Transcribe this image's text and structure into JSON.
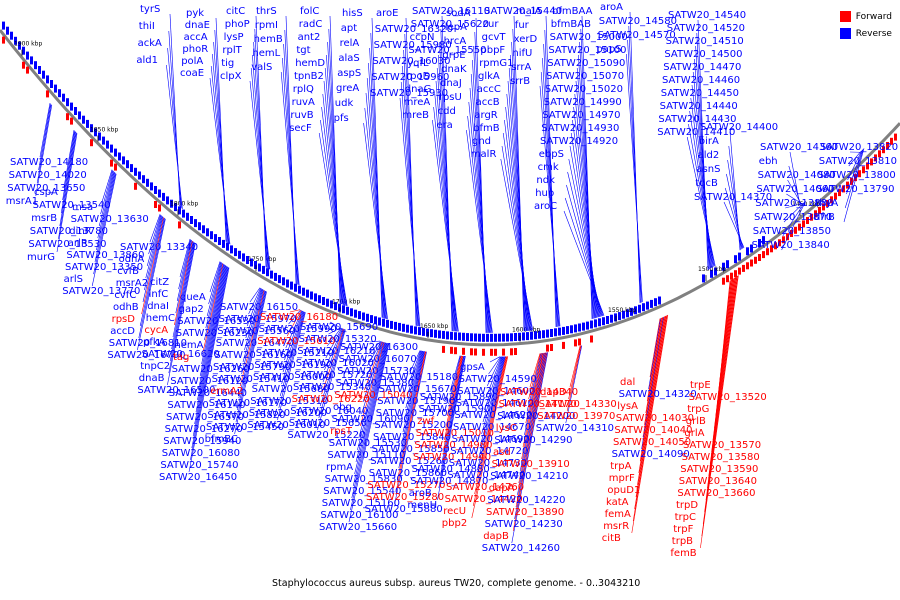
{
  "title": "Staphylococcus aureus subsp. aureus TW20, complete genome. - 0..3043210",
  "legend": [
    {
      "label": "Forward",
      "color": "#ff0000"
    },
    {
      "label": "Reverse",
      "color": "#0000ff"
    }
  ],
  "colors": {
    "forward": "#ff0000",
    "reverse": "#0000ff",
    "backbone": "#808080"
  },
  "ticks": [
    "1900 kbp",
    "1850 kbp",
    "1800 kbp",
    "1750 kbp",
    "1700 kbp",
    "1650 kbp",
    "1600 kbp",
    "1550 kbp",
    "1500 kbp",
    "1450 kbp"
  ],
  "labels": [
    {
      "text": "tyrS",
      "s": "r"
    },
    {
      "text": "thiI",
      "s": "r"
    },
    {
      "text": "ackA",
      "s": "r"
    },
    {
      "text": "ald1",
      "s": "r"
    },
    {
      "text": "pyk",
      "s": "r"
    },
    {
      "text": "dnaE",
      "s": "r"
    },
    {
      "text": "accA",
      "s": "r"
    },
    {
      "text": "phoR",
      "s": "r"
    },
    {
      "text": "polA",
      "s": "r"
    },
    {
      "text": "coaE",
      "s": "r"
    },
    {
      "text": "citC",
      "s": "r"
    },
    {
      "text": "phoP",
      "s": "r"
    },
    {
      "text": "lysP",
      "s": "r"
    },
    {
      "text": "rplT",
      "s": "r"
    },
    {
      "text": "tig",
      "s": "r"
    },
    {
      "text": "clpX",
      "s": "r"
    },
    {
      "text": "thrS",
      "s": "r"
    },
    {
      "text": "rpmI",
      "s": "r"
    },
    {
      "text": "hemB",
      "s": "r"
    },
    {
      "text": "hemL",
      "s": "r"
    },
    {
      "text": "valS",
      "s": "r"
    },
    {
      "text": "folC",
      "s": "r"
    },
    {
      "text": "radC",
      "s": "r"
    },
    {
      "text": "ant2",
      "s": "r"
    },
    {
      "text": "tgt",
      "s": "r"
    },
    {
      "text": "hemD",
      "s": "r"
    },
    {
      "text": "tpnB2",
      "s": "r"
    },
    {
      "text": "rplQ",
      "s": "r"
    },
    {
      "text": "ruvA",
      "s": "r"
    },
    {
      "text": "ruvB",
      "s": "r"
    },
    {
      "text": "secF",
      "s": "r"
    },
    {
      "text": "hisS",
      "s": "r"
    },
    {
      "text": "apt",
      "s": "r"
    },
    {
      "text": "relA",
      "s": "r"
    },
    {
      "text": "alaS",
      "s": "r"
    },
    {
      "text": "aspS",
      "s": "r"
    },
    {
      "text": "greA",
      "s": "r"
    },
    {
      "text": "udk",
      "s": "r"
    },
    {
      "text": "pfs",
      "s": "r"
    },
    {
      "text": "aroE",
      "s": "r"
    },
    {
      "text": "SATW20_16320",
      "s": "r"
    },
    {
      "text": "SATW20_15980",
      "s": "r"
    },
    {
      "text": "SATW20_16030",
      "s": "r"
    },
    {
      "text": "SATW20_15960",
      "s": "r"
    },
    {
      "text": "SATW20_15930",
      "s": "r"
    },
    {
      "text": "SATW20_16110",
      "s": "r"
    },
    {
      "text": "SATW20_15620",
      "s": "r"
    },
    {
      "text": "ccpN",
      "s": "r"
    },
    {
      "text": "SATW20_15550",
      "s": "r"
    },
    {
      "text": "yqfL",
      "s": "r"
    },
    {
      "text": "rpoD",
      "s": "r"
    },
    {
      "text": "dnaG",
      "s": "r"
    },
    {
      "text": "mreA",
      "s": "r"
    },
    {
      "text": "mreB",
      "s": "r"
    },
    {
      "text": "sodA",
      "s": "r"
    },
    {
      "text": "lepA",
      "s": "r"
    },
    {
      "text": "hrcA",
      "s": "r"
    },
    {
      "text": "grpE",
      "s": "r"
    },
    {
      "text": "dnaK",
      "s": "r"
    },
    {
      "text": "dnaJ",
      "s": "r"
    },
    {
      "text": "rpsU",
      "s": "r"
    },
    {
      "text": "cdd",
      "s": "r"
    },
    {
      "text": "era",
      "s": "r"
    },
    {
      "text": "SATW20_15440",
      "s": "r"
    },
    {
      "text": "zur",
      "s": "r"
    },
    {
      "text": "gcvT",
      "s": "r"
    },
    {
      "text": "pbpF",
      "s": "r"
    },
    {
      "text": "rpmG1",
      "s": "r"
    },
    {
      "text": "glkA",
      "s": "r"
    },
    {
      "text": "accC",
      "s": "r"
    },
    {
      "text": "accB",
      "s": "r"
    },
    {
      "text": "argR",
      "s": "r"
    },
    {
      "text": "bfmB",
      "s": "r"
    },
    {
      "text": "gnd",
      "s": "r"
    },
    {
      "text": "malR",
      "s": "r"
    },
    {
      "text": "malA",
      "s": "r"
    },
    {
      "text": "fur",
      "s": "r"
    },
    {
      "text": "xerD",
      "s": "r"
    },
    {
      "text": "nifU",
      "s": "r"
    },
    {
      "text": "srrA",
      "s": "r"
    },
    {
      "text": "srrB",
      "s": "r"
    },
    {
      "text": "bfmBAA",
      "s": "r"
    },
    {
      "text": "bfmBAB",
      "s": "r"
    },
    {
      "text": "SATW20_15000",
      "s": "r"
    },
    {
      "text": "SATW20_15100",
      "s": "r"
    },
    {
      "text": "SATW20_15090",
      "s": "r"
    },
    {
      "text": "SATW20_15070",
      "s": "r"
    },
    {
      "text": "SATW20_15020",
      "s": "r"
    },
    {
      "text": "SATW20_14990",
      "s": "r"
    },
    {
      "text": "SATW20_14970",
      "s": "r"
    },
    {
      "text": "SATW20_14930",
      "s": "r"
    },
    {
      "text": "SATW20_14920",
      "s": "r"
    },
    {
      "text": "ebpS",
      "s": "r"
    },
    {
      "text": "cmk",
      "s": "r"
    },
    {
      "text": "ndk",
      "s": "r"
    },
    {
      "text": "hup",
      "s": "r"
    },
    {
      "text": "aroC",
      "s": "r"
    },
    {
      "text": "aroA",
      "s": "r"
    },
    {
      "text": "SATW20_14580",
      "s": "r"
    },
    {
      "text": "SATW20_14570",
      "s": "r"
    },
    {
      "text": "papS",
      "s": "r"
    },
    {
      "text": "SATW20_14540",
      "s": "r"
    },
    {
      "text": "SATW20_14520",
      "s": "r"
    },
    {
      "text": "SATW20_14510",
      "s": "r"
    },
    {
      "text": "SATW20_14500",
      "s": "r"
    },
    {
      "text": "SATW20_14470",
      "s": "r"
    },
    {
      "text": "SATW20_14460",
      "s": "r"
    },
    {
      "text": "SATW20_14450",
      "s": "r"
    },
    {
      "text": "SATW20_14440",
      "s": "r"
    },
    {
      "text": "SATW20_14430",
      "s": "r"
    },
    {
      "text": "SATW20_14410",
      "s": "r"
    },
    {
      "text": "SATW20_14400",
      "s": "r"
    },
    {
      "text": "birA",
      "s": "r"
    },
    {
      "text": "ald2",
      "s": "r"
    },
    {
      "text": "asnS",
      "s": "r"
    },
    {
      "text": "tdcB",
      "s": "r"
    },
    {
      "text": "SATW20_14370",
      "s": "r"
    },
    {
      "text": "SATW20_14360",
      "s": "r"
    },
    {
      "text": "ebh",
      "s": "r"
    },
    {
      "text": "SATW20_14080",
      "s": "r"
    },
    {
      "text": "SATW20_14060",
      "s": "r"
    },
    {
      "text": "SATW20_13880",
      "s": "r"
    },
    {
      "text": "SATW20_13870",
      "s": "r"
    },
    {
      "text": "SATW20_13850",
      "s": "r"
    },
    {
      "text": "SATW20_13840",
      "s": "r"
    },
    {
      "text": "SATW20_13820",
      "s": "r"
    },
    {
      "text": "SATW20_13810",
      "s": "r"
    },
    {
      "text": "SATW20_13800",
      "s": "r"
    },
    {
      "text": "SATW20_13790",
      "s": "r"
    },
    {
      "text": "thyA",
      "s": "r"
    },
    {
      "text": "dfrB",
      "s": "r"
    },
    {
      "text": "SATW20_14180",
      "s": "r"
    },
    {
      "text": "SATW20_14020",
      "s": "r"
    },
    {
      "text": "SATW20_13650",
      "s": "r"
    },
    {
      "text": "msrA1",
      "s": "r"
    },
    {
      "text": "cspA",
      "s": "r"
    },
    {
      "text": "SATW20_13540",
      "s": "r"
    },
    {
      "text": "msrB",
      "s": "r"
    },
    {
      "text": "SATW20_13780",
      "s": "r"
    },
    {
      "text": "SATW20_13530",
      "s": "r"
    },
    {
      "text": "murG",
      "s": "r"
    },
    {
      "text": "msa",
      "s": "r"
    },
    {
      "text": "SATW20_13630",
      "s": "r"
    },
    {
      "text": "dinR",
      "s": "r"
    },
    {
      "text": "arlR",
      "s": "r"
    },
    {
      "text": "SATW20_13860",
      "s": "r"
    },
    {
      "text": "SATW20_13350",
      "s": "r"
    },
    {
      "text": "arlS",
      "s": "r"
    },
    {
      "text": "SATW20_13770",
      "s": "r"
    },
    {
      "text": "SATW20_13340",
      "s": "r"
    },
    {
      "text": "odhA",
      "s": "r"
    },
    {
      "text": "cvfB",
      "s": "r"
    },
    {
      "text": "msrA2",
      "s": "r"
    },
    {
      "text": "cvfC",
      "s": "r"
    },
    {
      "text": "odhB",
      "s": "r"
    },
    {
      "text": "rpsD",
      "s": "f"
    },
    {
      "text": "accD",
      "s": "r"
    },
    {
      "text": "SATW20_16810",
      "s": "r"
    },
    {
      "text": "SATW20_16790",
      "s": "r"
    },
    {
      "text": "citZ",
      "s": "r"
    },
    {
      "text": "infC",
      "s": "r"
    },
    {
      "text": "dnaI",
      "s": "r"
    },
    {
      "text": "hemC",
      "s": "r"
    },
    {
      "text": "cycA",
      "s": "f"
    },
    {
      "text": "pfkA",
      "s": "r"
    },
    {
      "text": "SATW20_16620",
      "s": "r"
    },
    {
      "text": "tnpC2",
      "s": "r"
    },
    {
      "text": "dnaB",
      "s": "r"
    },
    {
      "text": "SATW20_16500",
      "s": "r"
    },
    {
      "text": "queA",
      "s": "r"
    },
    {
      "text": "gap2",
      "s": "r"
    },
    {
      "text": "SATW20_16530",
      "s": "r"
    },
    {
      "text": "SATW20_16230",
      "s": "r"
    },
    {
      "text": "hemA",
      "s": "r"
    },
    {
      "text": "tag",
      "s": "f"
    },
    {
      "text": "SATW20_16260",
      "s": "r"
    },
    {
      "text": "SATW20_16120",
      "s": "r"
    },
    {
      "text": "SATW20_16440",
      "s": "r"
    },
    {
      "text": "SATW20_16140",
      "s": "r"
    },
    {
      "text": "SATW20_16570",
      "s": "r"
    },
    {
      "text": "SATW20_16270",
      "s": "r"
    },
    {
      "text": "SATW20_15940",
      "s": "r"
    },
    {
      "text": "SATW20_16080",
      "s": "r"
    },
    {
      "text": "SATW20_15740",
      "s": "r"
    },
    {
      "text": "SATW20_16450",
      "s": "r"
    },
    {
      "text": "SATW20_16150",
      "s": "r"
    },
    {
      "text": "SATW20_15970",
      "s": "r"
    },
    {
      "text": "SATW20_15560",
      "s": "r"
    },
    {
      "text": "SATW20_16470",
      "s": "r"
    },
    {
      "text": "SATW20_16160",
      "s": "r"
    },
    {
      "text": "SATW20_15790",
      "s": "r"
    },
    {
      "text": "SATW20_15410",
      "s": "r"
    },
    {
      "text": "ermA2",
      "s": "f"
    },
    {
      "text": "SATW20_16170",
      "s": "r"
    },
    {
      "text": "SATW20_15820",
      "s": "r"
    },
    {
      "text": "SATW20_15450",
      "s": "r"
    },
    {
      "text": "bfmBC",
      "s": "r"
    },
    {
      "text": "SATW20_16180",
      "s": "f"
    },
    {
      "text": "SATW20_15990",
      "s": "r"
    },
    {
      "text": "SATW20_15610",
      "s": "f"
    },
    {
      "text": "SATW20_15210",
      "s": "r"
    },
    {
      "text": "SATW20_16190",
      "s": "r"
    },
    {
      "text": "SATW20_16000",
      "s": "r"
    },
    {
      "text": "SATW20_15680",
      "s": "r"
    },
    {
      "text": "SATW20_15310",
      "s": "r"
    },
    {
      "text": "SATW20_16200",
      "s": "r"
    },
    {
      "text": "SATW20_16010",
      "s": "r"
    },
    {
      "text": "SATW20_15690",
      "s": "r"
    },
    {
      "text": "SATW20_15320",
      "s": "r"
    },
    {
      "text": "SATW20_16210",
      "s": "r"
    },
    {
      "text": "SATW20_16020",
      "s": "r"
    },
    {
      "text": "SATW20_15720",
      "s": "r"
    },
    {
      "text": "SATW20_15340",
      "s": "r"
    },
    {
      "text": "SATW20_16220",
      "s": "f"
    },
    {
      "text": "SATW20_16040",
      "s": "r"
    },
    {
      "text": "SATW20_15650",
      "s": "r"
    },
    {
      "text": "SATW20_15220",
      "s": "r"
    },
    {
      "text": "SATW20_16300",
      "s": "r"
    },
    {
      "text": "SATW20_16070",
      "s": "r"
    },
    {
      "text": "SATW20_15730",
      "s": "r"
    },
    {
      "text": "SATW20_15380",
      "s": "r"
    },
    {
      "text": "SATW20_15040",
      "s": "f"
    },
    {
      "text": "obg",
      "s": "r"
    },
    {
      "text": "SATW20_16090",
      "s": "r"
    },
    {
      "text": "rpsT",
      "s": "f"
    },
    {
      "text": "SATW20_15530",
      "s": "r"
    },
    {
      "text": "SATW20_15110",
      "s": "r"
    },
    {
      "text": "rpmA",
      "s": "r"
    },
    {
      "text": "SATW20_15830",
      "s": "r"
    },
    {
      "text": "SATW20_15540",
      "s": "r"
    },
    {
      "text": "SATW20_15160",
      "s": "r"
    },
    {
      "text": "SATW20_16100",
      "s": "r"
    },
    {
      "text": "SATW20_15660",
      "s": "r"
    },
    {
      "text": "SATW20_15180",
      "s": "r"
    },
    {
      "text": "SATW20_15670",
      "s": "r"
    },
    {
      "text": "SATW20_15190",
      "s": "r"
    },
    {
      "text": "SATW20_15700",
      "s": "r"
    },
    {
      "text": "SATW20_15200",
      "s": "r"
    },
    {
      "text": "SATW20_15840",
      "s": "r"
    },
    {
      "text": "SATW20_15850",
      "s": "r"
    },
    {
      "text": "SATW20_15260",
      "s": "r"
    },
    {
      "text": "SATW20_15860",
      "s": "r"
    },
    {
      "text": "SATW20_15270",
      "s": "f"
    },
    {
      "text": "SATW20_15280",
      "s": "f"
    },
    {
      "text": "SATW20_15880",
      "s": "r"
    },
    {
      "text": "SATW20_15890",
      "s": "r"
    },
    {
      "text": "SATW20_15900",
      "s": "r"
    },
    {
      "text": "zwf",
      "s": "f"
    },
    {
      "text": "SATW20_15010",
      "s": "f"
    },
    {
      "text": "SATW20_14980",
      "s": "f"
    },
    {
      "text": "SATW20_14940",
      "s": "f"
    },
    {
      "text": "SATW20_14880",
      "s": "r"
    },
    {
      "text": "SATW20_14870",
      "s": "r"
    },
    {
      "text": "aroB",
      "s": "r"
    },
    {
      "text": "menH",
      "s": "r"
    },
    {
      "text": "gpsA",
      "s": "r"
    },
    {
      "text": "SATW20_14590",
      "s": "r"
    },
    {
      "text": "SATW20_14600",
      "s": "r"
    },
    {
      "text": "SATW20_14610",
      "s": "r"
    },
    {
      "text": "SATW20_14620",
      "s": "r"
    },
    {
      "text": "SATW20_14670",
      "s": "r"
    },
    {
      "text": "SATW20_14690",
      "s": "r"
    },
    {
      "text": "SATW20_14720",
      "s": "r"
    },
    {
      "text": "SATW20_14730",
      "s": "r"
    },
    {
      "text": "SATW20_14740",
      "s": "r"
    },
    {
      "text": "SATW20_14760",
      "s": "f"
    },
    {
      "text": "SATW20_14420",
      "s": "f"
    },
    {
      "text": "recU",
      "s": "f"
    },
    {
      "text": "pbp2",
      "s": "f"
    },
    {
      "text": "SATW20_14340",
      "s": "f"
    },
    {
      "text": "SATW20_14170",
      "s": "f"
    },
    {
      "text": "SATW20_14200",
      "s": "r"
    },
    {
      "text": "lysC",
      "s": "f"
    },
    {
      "text": "SATW20_14290",
      "s": "r"
    },
    {
      "text": "asd",
      "s": "f"
    },
    {
      "text": "SATW20_13910",
      "s": "f"
    },
    {
      "text": "SATW20_14210",
      "s": "r"
    },
    {
      "text": "dapA",
      "s": "f"
    },
    {
      "text": "SATW20_14220",
      "s": "r"
    },
    {
      "text": "SATW20_13890",
      "s": "f"
    },
    {
      "text": "SATW20_14230",
      "s": "r"
    },
    {
      "text": "dapB",
      "s": "f"
    },
    {
      "text": "SATW20_14260",
      "s": "r"
    },
    {
      "text": "dapD",
      "s": "f"
    },
    {
      "text": "SATW20_14330",
      "s": "f"
    },
    {
      "text": "SATW20_13970",
      "s": "f"
    },
    {
      "text": "SATW20_14310",
      "s": "r"
    },
    {
      "text": "dal",
      "s": "f"
    },
    {
      "text": "SATW20_14320",
      "s": "r"
    },
    {
      "text": "lysA",
      "s": "f"
    },
    {
      "text": "SATW20_14030",
      "s": "f"
    },
    {
      "text": "SATW20_14040",
      "s": "f"
    },
    {
      "text": "SATW20_14050",
      "s": "f"
    },
    {
      "text": "SATW20_14090",
      "s": "r"
    },
    {
      "text": "trpA",
      "s": "f"
    },
    {
      "text": "mprF",
      "s": "f"
    },
    {
      "text": "opuD1",
      "s": "f"
    },
    {
      "text": "katA",
      "s": "f"
    },
    {
      "text": "femA",
      "s": "f"
    },
    {
      "text": "msrR",
      "s": "f"
    },
    {
      "text": "citB",
      "s": "f"
    },
    {
      "text": "trpE",
      "s": "f"
    },
    {
      "text": "SATW20_13520",
      "s": "f"
    },
    {
      "text": "trpG",
      "s": "f"
    },
    {
      "text": "grlB",
      "s": "f"
    },
    {
      "text": "grlA",
      "s": "f"
    },
    {
      "text": "SATW20_13570",
      "s": "f"
    },
    {
      "text": "SATW20_13580",
      "s": "f"
    },
    {
      "text": "SATW20_13590",
      "s": "f"
    },
    {
      "text": "SATW20_13640",
      "s": "f"
    },
    {
      "text": "SATW20_13660",
      "s": "f"
    },
    {
      "text": "trpD",
      "s": "f"
    },
    {
      "text": "trpC",
      "s": "f"
    },
    {
      "text": "trpF",
      "s": "f"
    },
    {
      "text": "trpB",
      "s": "f"
    },
    {
      "text": "femB",
      "s": "f"
    }
  ]
}
